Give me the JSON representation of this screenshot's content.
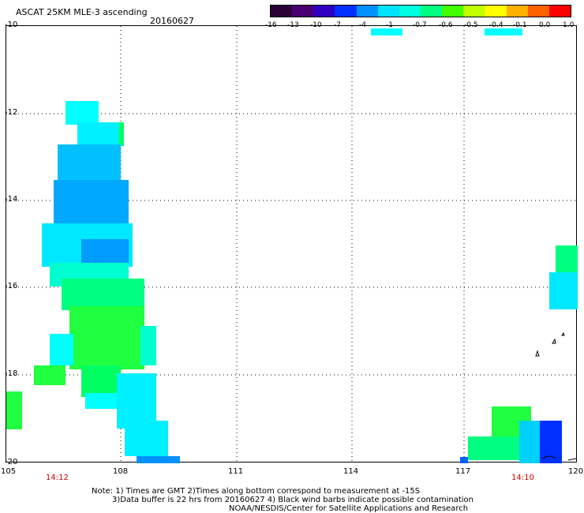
{
  "header": {
    "title": "ASCAT 25KM MLE-3 ascending",
    "date": "20160627"
  },
  "colorbar": {
    "colors": [
      "#2a0038",
      "#4a0070",
      "#3000c0",
      "#0030ff",
      "#0090ff",
      "#00e0ff",
      "#00ffe0",
      "#00ff80",
      "#40ff00",
      "#c0ff00",
      "#ffff00",
      "#ffb000",
      "#ff6000",
      "#ff0000"
    ],
    "ticks": [
      "-16",
      "-13",
      "-10",
      "-7",
      "-4",
      "-1",
      "-0.7",
      "-0.6",
      "-0.5",
      "-0.4",
      "-0.1",
      "0.0",
      "1.0"
    ]
  },
  "axes": {
    "lat_labels": [
      "-10",
      "-12",
      "-14",
      "-16",
      "-18",
      "-20"
    ],
    "lon_labels": [
      "105",
      "108",
      "111",
      "114",
      "117",
      "120"
    ]
  },
  "pass_times": [
    "14:12",
    "14:10"
  ],
  "footer": {
    "line1": "Note: 1) Times are GMT 2)Times along bottom correspond to measurement at -15S",
    "line2": "3)Data buffer is 22 hrs from 20160627 4) Black wind barbs indicate possible contamination",
    "line3": "NOAA/NESDIS/Center for Satellite Applications and Research"
  }
}
